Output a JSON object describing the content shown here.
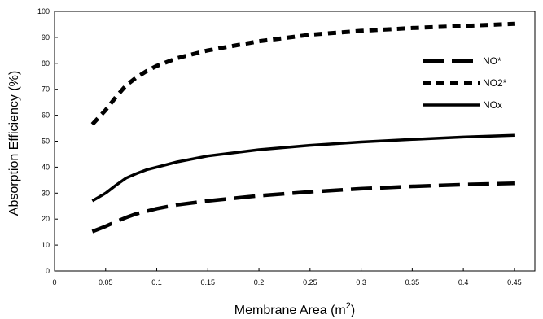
{
  "chart_data": {
    "type": "line",
    "xlabel": "Membrane Area (m",
    "xlabel_sup": "2",
    "xlabel_end": ")",
    "ylabel": "Absorption Efficiency (%)",
    "xlim": [
      0,
      0.47
    ],
    "ylim": [
      0,
      100
    ],
    "x_ticks": [
      0,
      0.05,
      0.1,
      0.15,
      0.2,
      0.25,
      0.3,
      0.35,
      0.4,
      0.45
    ],
    "x_tick_labels": [
      "0",
      "0.05",
      "0.1",
      "0.15",
      "0.2",
      "0.25",
      "0.3",
      "0.35",
      "0.4",
      "0.45"
    ],
    "y_ticks": [
      0,
      10,
      20,
      30,
      40,
      50,
      60,
      70,
      80,
      90,
      100
    ],
    "y_tick_labels": [
      "0",
      "10",
      "20",
      "30",
      "40",
      "50",
      "60",
      "70",
      "80",
      "90",
      "100"
    ],
    "grid": false,
    "legend_position": "right",
    "series": [
      {
        "name": "NO*",
        "style": "long-dash",
        "x": [
          0.037,
          0.05,
          0.06,
          0.07,
          0.08,
          0.09,
          0.1,
          0.12,
          0.15,
          0.2,
          0.25,
          0.3,
          0.35,
          0.4,
          0.45
        ],
        "y": [
          15.2,
          17.2,
          19.0,
          20.6,
          22.0,
          23.0,
          24.0,
          25.5,
          27.0,
          29.0,
          30.5,
          31.7,
          32.6,
          33.3,
          33.8
        ]
      },
      {
        "name": "NO2*",
        "style": "short-dash",
        "x": [
          0.037,
          0.05,
          0.06,
          0.07,
          0.08,
          0.09,
          0.1,
          0.12,
          0.15,
          0.2,
          0.25,
          0.3,
          0.35,
          0.4,
          0.45
        ],
        "y": [
          56.5,
          62.0,
          67.0,
          71.5,
          74.5,
          77.0,
          79.0,
          82.0,
          85.0,
          88.5,
          91.0,
          92.5,
          93.6,
          94.4,
          95.2
        ]
      },
      {
        "name": "NOx",
        "style": "solid",
        "x": [
          0.037,
          0.05,
          0.06,
          0.07,
          0.08,
          0.09,
          0.1,
          0.12,
          0.15,
          0.2,
          0.25,
          0.3,
          0.35,
          0.4,
          0.45
        ],
        "y": [
          27.0,
          30.0,
          33.0,
          35.8,
          37.5,
          39.0,
          40.0,
          42.0,
          44.3,
          46.7,
          48.4,
          49.7,
          50.7,
          51.6,
          52.3
        ]
      }
    ]
  }
}
